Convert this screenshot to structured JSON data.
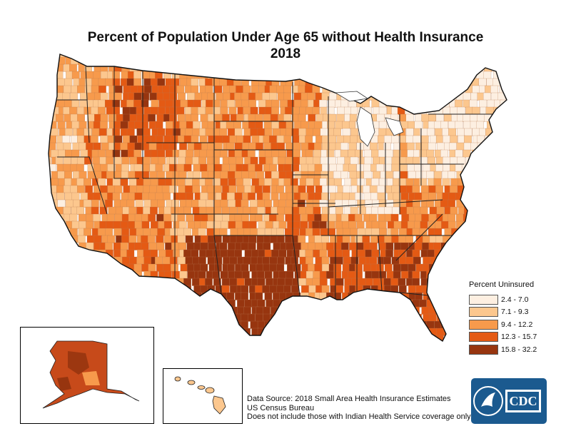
{
  "title": {
    "line1": "Percent of Population Under Age 65 without Health Insurance",
    "line2": "2018"
  },
  "legend": {
    "title": "Percent Uninsured",
    "classes": [
      {
        "label": "2.4 - 7.0",
        "color": "#fdefe1"
      },
      {
        "label": "7.1 - 9.3",
        "color": "#fcc78e"
      },
      {
        "label": "9.4 - 12.2",
        "color": "#f79a4c"
      },
      {
        "label": "12.3 - 15.7",
        "color": "#e45a14"
      },
      {
        "label": "15.8 - 32.2",
        "color": "#97350f"
      }
    ]
  },
  "source": {
    "line1": "Data Source: 2018 Small Area Health Insurance Estimates",
    "line2": "US Census Bureau",
    "line3": "Does not include those with Indian Health Service coverage only."
  },
  "logo": {
    "text": "CDC",
    "background": "#1b5a8f"
  },
  "map_regions": {
    "contiguous": "contiguous-us",
    "alaska": "alaska",
    "hawaii": "hawaii"
  }
}
